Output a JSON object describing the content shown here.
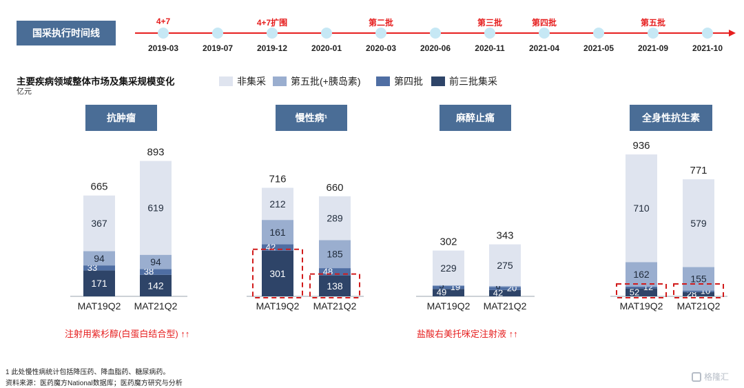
{
  "timeline": {
    "label": "国采执行时间线",
    "points": [
      {
        "date": "2019-03",
        "event": "4+7"
      },
      {
        "date": "2019-07",
        "event": ""
      },
      {
        "date": "2019-12",
        "event": "4+7扩围"
      },
      {
        "date": "2020-01",
        "event": ""
      },
      {
        "date": "2020-03",
        "event": "第二批"
      },
      {
        "date": "2020-06",
        "event": ""
      },
      {
        "date": "2020-11",
        "event": "第三批"
      },
      {
        "date": "2021-04",
        "event": "第四批"
      },
      {
        "date": "2021-05",
        "event": ""
      },
      {
        "date": "2021-09",
        "event": "第五批"
      },
      {
        "date": "2021-10",
        "event": ""
      }
    ]
  },
  "section": {
    "title": "主要疾病领域整体市场及集采规模变化",
    "unit": "亿元"
  },
  "legend": [
    {
      "label": "非集采",
      "color": "#dfe4ef"
    },
    {
      "label": "第五批(+胰岛素)",
      "color": "#9aaecf"
    },
    {
      "label": "第四批",
      "color": "#4f6ea3"
    },
    {
      "label": "前三批集采",
      "color": "#2e4468"
    }
  ],
  "chart_data": [
    {
      "type": "bar",
      "title": "抗肿瘤",
      "categories": [
        "MAT19Q2",
        "MAT21Q2"
      ],
      "totals": [
        665,
        893
      ],
      "series": [
        {
          "name": "前三批集采",
          "values": [
            171,
            142
          ]
        },
        {
          "name": "第四批",
          "values": [
            33,
            38
          ]
        },
        {
          "name": "第五批(+胰岛素)",
          "values": [
            94,
            94
          ]
        },
        {
          "name": "非集采",
          "values": [
            367,
            619
          ]
        }
      ],
      "highlight": []
    },
    {
      "type": "bar",
      "title": "慢性病¹",
      "categories": [
        "MAT19Q2",
        "MAT21Q2"
      ],
      "totals": [
        716,
        660
      ],
      "series": [
        {
          "name": "前三批集采",
          "values": [
            301,
            138
          ]
        },
        {
          "name": "第四批",
          "values": [
            42,
            48
          ]
        },
        {
          "name": "第五批(+胰岛素)",
          "values": [
            161,
            185
          ]
        },
        {
          "name": "非集采",
          "values": [
            212,
            289
          ]
        }
      ],
      "highlight": [
        "前三批集采"
      ]
    },
    {
      "type": "bar",
      "title": "麻醉止痛",
      "categories": [
        "MAT19Q2",
        "MAT21Q2"
      ],
      "totals": [
        302,
        343
      ],
      "series": [
        {
          "name": "前三批集采",
          "values": [
            49,
            42
          ]
        },
        {
          "name": "第四批",
          "values": [
            19,
            20
          ]
        },
        {
          "name": "第五批(+胰岛素)",
          "values": [
            5,
            6
          ]
        },
        {
          "name": "非集采",
          "values": [
            229,
            275
          ]
        }
      ],
      "highlight": []
    },
    {
      "type": "bar",
      "title": "全身性抗生素",
      "categories": [
        "MAT19Q2",
        "MAT21Q2"
      ],
      "totals": [
        936,
        771
      ],
      "series": [
        {
          "name": "前三批集采",
          "values": [
            52,
            28
          ]
        },
        {
          "name": "第四批",
          "values": [
            12,
            10
          ]
        },
        {
          "name": "第五批(+胰岛素)",
          "values": [
            162,
            155
          ]
        },
        {
          "name": "非集采",
          "values": [
            710,
            579
          ]
        }
      ],
      "highlight": [
        "前三批集采",
        "第四批"
      ]
    }
  ],
  "notes": {
    "oncology_note": "注射用紫杉醇(白蛋白结合型)  ↑↑",
    "anesthesia_note": "盐酸右美托咪定注射液  ↑↑",
    "footnote": "1 此处慢性病统计包括降压药、降血脂药、糖尿病药。",
    "source": "资料来源：医药魔方National数据库；医药魔方研究与分析"
  },
  "logo": "格隆汇"
}
